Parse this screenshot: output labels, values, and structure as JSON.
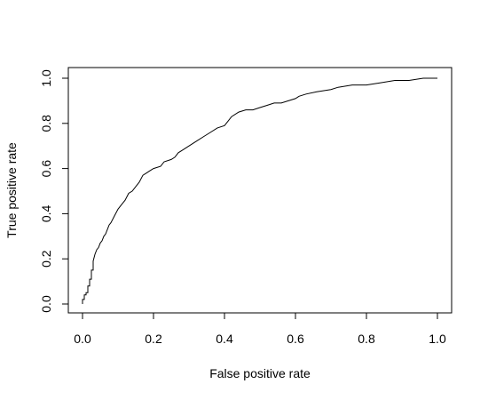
{
  "chart_data": {
    "type": "line",
    "title": "",
    "xlabel": "False positive rate",
    "ylabel": "True positive rate",
    "xlim": [
      0,
      1
    ],
    "ylim": [
      0,
      1
    ],
    "x_ticks": [
      "0.0",
      "0.2",
      "0.4",
      "0.6",
      "0.8",
      "1.0"
    ],
    "y_ticks": [
      "0.0",
      "0.2",
      "0.4",
      "0.6",
      "0.8",
      "1.0"
    ],
    "grid": false,
    "legend": "none",
    "series": [
      {
        "line_color": "#000000",
        "x": [
          0.0,
          0.0,
          0.005,
          0.005,
          0.01,
          0.01,
          0.015,
          0.015,
          0.02,
          0.02,
          0.025,
          0.025,
          0.03,
          0.03,
          0.035,
          0.04,
          0.045,
          0.05,
          0.055,
          0.06,
          0.065,
          0.07,
          0.075,
          0.08,
          0.09,
          0.1,
          0.11,
          0.12,
          0.13,
          0.14,
          0.15,
          0.16,
          0.17,
          0.18,
          0.19,
          0.2,
          0.22,
          0.23,
          0.25,
          0.26,
          0.27,
          0.28,
          0.3,
          0.32,
          0.34,
          0.36,
          0.38,
          0.4,
          0.41,
          0.42,
          0.44,
          0.46,
          0.48,
          0.5,
          0.52,
          0.54,
          0.56,
          0.58,
          0.6,
          0.61,
          0.63,
          0.66,
          0.7,
          0.72,
          0.76,
          0.8,
          0.84,
          0.88,
          0.92,
          0.96,
          0.98,
          1.0
        ],
        "y": [
          0.0,
          0.02,
          0.02,
          0.04,
          0.04,
          0.05,
          0.05,
          0.08,
          0.08,
          0.11,
          0.11,
          0.15,
          0.15,
          0.19,
          0.22,
          0.24,
          0.25,
          0.27,
          0.28,
          0.3,
          0.31,
          0.33,
          0.35,
          0.36,
          0.39,
          0.42,
          0.44,
          0.46,
          0.49,
          0.5,
          0.52,
          0.54,
          0.57,
          0.58,
          0.59,
          0.6,
          0.61,
          0.63,
          0.64,
          0.65,
          0.67,
          0.68,
          0.7,
          0.72,
          0.74,
          0.76,
          0.78,
          0.79,
          0.81,
          0.83,
          0.85,
          0.86,
          0.86,
          0.87,
          0.88,
          0.89,
          0.89,
          0.9,
          0.91,
          0.92,
          0.93,
          0.94,
          0.95,
          0.96,
          0.97,
          0.97,
          0.98,
          0.99,
          0.99,
          1.0,
          1.0,
          1.0
        ]
      }
    ]
  }
}
